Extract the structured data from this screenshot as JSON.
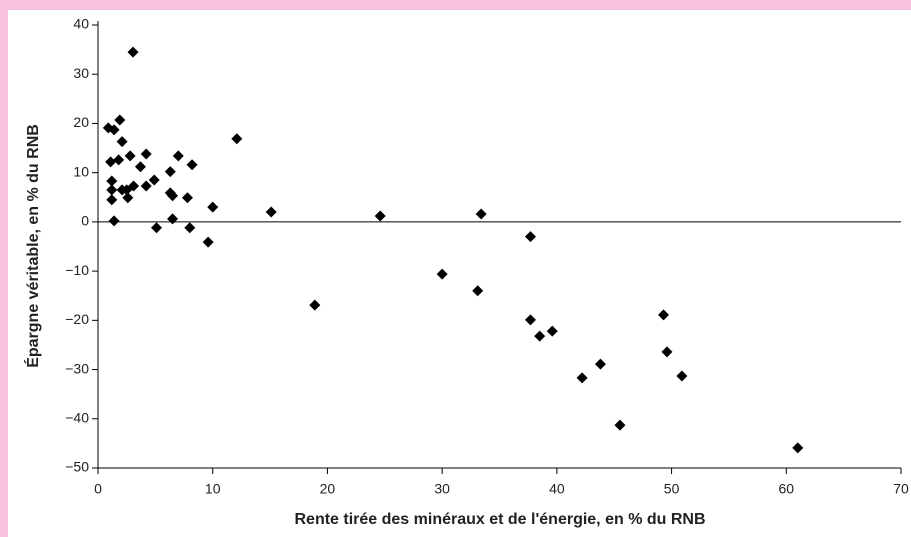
{
  "chart_data": {
    "type": "scatter",
    "x_label": "Rente tirée des minéraux et de l'énergie, en % du RNB",
    "y_label": "Épargne véritable, en % du RNB",
    "xlim": [
      0,
      70
    ],
    "xticks": [
      0,
      10,
      20,
      30,
      40,
      50,
      60,
      70
    ],
    "ylim": [
      -50,
      40
    ],
    "yticks": [
      {
        "value": -50,
        "label": "−50"
      },
      {
        "value": -40,
        "label": "−40"
      },
      {
        "value": -30,
        "label": "−30"
      },
      {
        "value": -20,
        "label": "−20"
      },
      {
        "value": -10,
        "label": "−10"
      },
      0,
      10,
      20,
      30,
      40
    ],
    "zero_line": true,
    "color": "#000000",
    "x": [
      3.05,
      0.9,
      1.4,
      1.9,
      2.1,
      1.1,
      1.8,
      2.8,
      4.2,
      3.7,
      1.2,
      1.2,
      1.2,
      2.1,
      2.5,
      2.6,
      3.1,
      4.2,
      4.9,
      1.4,
      5.1,
      6.3,
      6.3,
      6.5,
      7.0,
      8.2,
      7.8,
      6.5,
      8.0,
      9.6,
      10.0,
      12.1,
      15.1,
      18.9,
      24.6,
      30.0,
      33.4,
      33.1,
      37.7,
      37.7,
      38.5,
      39.6,
      42.2,
      43.8,
      45.5,
      49.3,
      49.6,
      50.9,
      61.0
    ],
    "values": [
      34.5,
      19.1,
      18.7,
      20.7,
      16.3,
      12.2,
      12.6,
      13.4,
      13.8,
      11.2,
      8.3,
      6.5,
      4.5,
      6.5,
      6.5,
      4.9,
      7.3,
      7.3,
      8.5,
      0.2,
      -1.2,
      10.2,
      5.9,
      5.3,
      13.4,
      11.6,
      4.9,
      0.6,
      -1.2,
      -4.1,
      3.0,
      16.9,
      2.0,
      -16.9,
      1.2,
      -10.6,
      1.6,
      -14.0,
      -3.0,
      -19.9,
      -23.2,
      -22.2,
      -31.7,
      -28.9,
      -41.3,
      -18.9,
      -26.4,
      -31.3,
      -45.9
    ]
  }
}
